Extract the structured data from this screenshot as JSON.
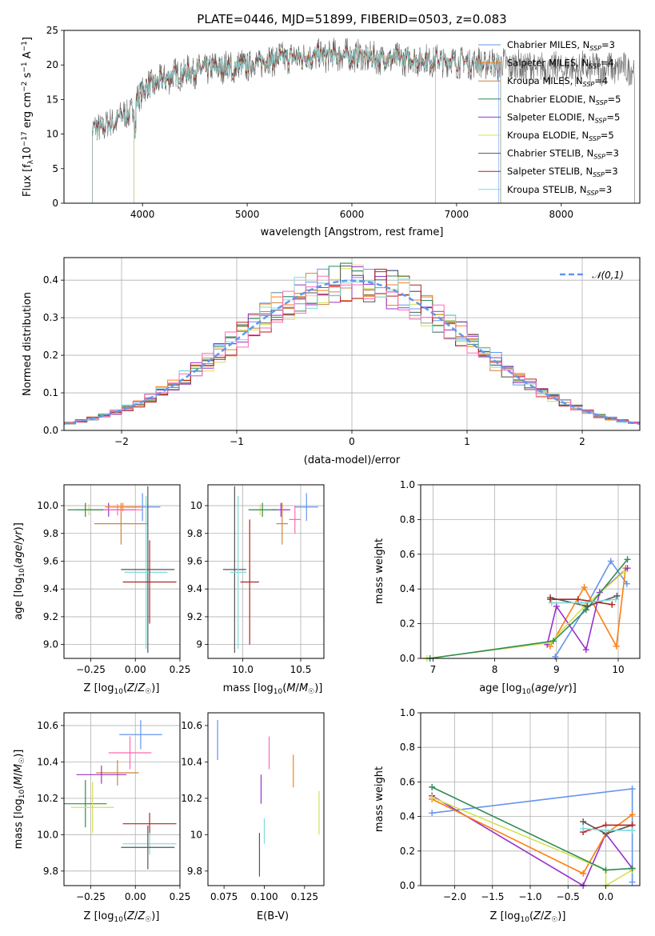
{
  "chart_data": [
    {
      "id": "spectrum",
      "type": "line",
      "title": "PLATE=0446, MJD=51899, FIBERID=0503, z=0.083",
      "xlabel": "wavelength [Angstrom, rest frame]",
      "ylabel": "Flux [f_λ10^-17 erg cm^-2 s^-1 A^-1]",
      "xlim": [
        3250,
        8750
      ],
      "ylim": [
        0,
        25
      ],
      "xticks": [
        4000,
        5000,
        6000,
        7000,
        8000
      ],
      "yticks": [
        0,
        5,
        10,
        15,
        20,
        25
      ],
      "grid": false,
      "legend_position": "top-right",
      "continuum": [
        [
          3520,
          10.5
        ],
        [
          3700,
          11.5
        ],
        [
          3900,
          13.5
        ],
        [
          4000,
          16.5
        ],
        [
          4300,
          18.5
        ],
        [
          4600,
          19.5
        ],
        [
          5000,
          20
        ],
        [
          5300,
          21
        ],
        [
          5600,
          21.2
        ],
        [
          5900,
          21.5
        ],
        [
          6200,
          21
        ],
        [
          6600,
          20.8
        ],
        [
          7000,
          20.5
        ],
        [
          7300,
          20.2
        ],
        [
          7500,
          20
        ],
        [
          7800,
          19.5
        ]
      ],
      "series": [
        {
          "name": "Chabrier MILES, N_SSP=3",
          "label_main": "Chabrier MILES, N",
          "label_sub": "SSP",
          "label_end": "=3",
          "color": "#6495ed",
          "xmin": 3520,
          "xmax": 7400
        },
        {
          "name": "Salpeter MILES, N_SSP=4",
          "label_main": "Salpeter MILES, N",
          "label_sub": "SSP",
          "label_end": "=4",
          "color": "#ff7f0e",
          "xmin": 3520,
          "xmax": 7420
        },
        {
          "name": "Kroupa MILES, N_SSP=4",
          "label_main": "Kroupa MILES, N",
          "label_sub": "SSP",
          "label_end": "=4",
          "color": "#cd853f",
          "xmin": 3520,
          "xmax": 7420
        },
        {
          "name": "Chabrier ELODIE, N_SSP=5",
          "label_main": "Chabrier ELODIE, N",
          "label_sub": "SSP",
          "label_end": "=5",
          "color": "#2e8b57",
          "xmin": 3920,
          "xmax": 6800
        },
        {
          "name": "Salpeter ELODIE, N_SSP=5",
          "label_main": "Salpeter ELODIE, N",
          "label_sub": "SSP",
          "label_end": "=5",
          "color": "#9932cc",
          "xmin": 3920,
          "xmax": 6800
        },
        {
          "name": "Kroupa ELODIE, N_SSP=5",
          "label_main": "Kroupa ELODIE, N",
          "label_sub": "SSP",
          "label_end": "=5",
          "color": "#d4e157",
          "xmin": 3920,
          "xmax": 6800
        },
        {
          "name": "Chabrier STELIB, N_SSP=3",
          "label_main": "Chabrier STELIB, N",
          "label_sub": "SSP",
          "label_end": "=3",
          "color": "#555555",
          "xmin": 3520,
          "xmax": 8700
        },
        {
          "name": "Salpeter STELIB, N_SSP=3",
          "label_main": "Salpeter STELIB, N",
          "label_sub": "SSP",
          "label_end": "=3",
          "color": "#b22222",
          "xmin": 3520,
          "xmax": 7420
        },
        {
          "name": "Kroupa STELIB, N_SSP=3",
          "label_main": "Kroupa STELIB, N",
          "label_sub": "SSP",
          "label_end": "=3",
          "color": "#7fdbdb",
          "xmin": 3520,
          "xmax": 7420
        }
      ]
    },
    {
      "id": "residuals",
      "type": "bar",
      "xlabel": "(data-model)/error",
      "ylabel": "Normed distribution",
      "xlim": [
        -2.5,
        2.5
      ],
      "ylim": [
        0,
        0.46
      ],
      "xticks": [
        -2,
        -1,
        0,
        1,
        2
      ],
      "yticks": [
        0.0,
        0.1,
        0.2,
        0.3,
        0.4
      ],
      "ytick_labels": [
        "0.0",
        "0.1",
        "0.2",
        "0.3",
        "0.4"
      ],
      "grid": true,
      "legend_position": "top-right",
      "legend_label": "𝒩(0,1)",
      "gaussian": {
        "mean": 0,
        "sigma": 1,
        "color": "#6495ed"
      },
      "bin_width": 0.1,
      "bin_start": -2.5,
      "bin_count": 50
    },
    {
      "id": "age_vs_Z",
      "type": "scatter",
      "xlabel": "Z [log10(Z/Z☉)]",
      "ylabel": "age [log10(age/yr)]",
      "xlim": [
        -0.4,
        0.25
      ],
      "ylim": [
        8.9,
        10.15
      ],
      "xticks": [
        -0.25,
        0.0,
        0.25
      ],
      "xtick_labels": [
        "−0.25",
        "0.00",
        "0.25"
      ],
      "yticks": [
        9.0,
        9.2,
        9.4,
        9.6,
        9.8,
        10.0
      ],
      "ytick_labels": [
        "9.0",
        "9.2",
        "9.4",
        "9.6",
        "9.8",
        "10.0"
      ],
      "grid": true,
      "points": [
        {
          "x": 0.04,
          "xerr": 0.1,
          "y": 9.99,
          "yerr": 0.1,
          "color": "#6495ed"
        },
        {
          "x": -0.15,
          "xerr": 0.15,
          "y": 9.97,
          "yerr": 0.05,
          "color": "#9932cc"
        },
        {
          "x": -0.07,
          "xerr": 0.1,
          "y": 9.99,
          "yerr": 0.03,
          "color": "#ff7f0e"
        },
        {
          "x": -0.1,
          "xerr": 0.14,
          "y": 9.97,
          "yerr": 0.04,
          "color": "#ff69b4"
        },
        {
          "x": -0.26,
          "xerr": 0.07,
          "y": 9.97,
          "yerr": 0.04,
          "color": "#d4e157"
        },
        {
          "x": -0.08,
          "xerr": 0.15,
          "y": 9.87,
          "yerr": 0.15,
          "color": "#cd853f"
        },
        {
          "x": -0.28,
          "xerr": 0.1,
          "y": 9.97,
          "yerr": 0.05,
          "color": "#2e8b57"
        },
        {
          "x": 0.07,
          "xerr": 0.15,
          "y": 9.54,
          "yerr": 0.6,
          "color": "#555555"
        },
        {
          "x": 0.06,
          "xerr": 0.12,
          "y": 9.52,
          "yerr": 0.55,
          "color": "#7fdbdb"
        },
        {
          "x": 0.08,
          "xerr": 0.15,
          "y": 9.45,
          "yerr": 0.3,
          "color": "#b22222"
        }
      ]
    },
    {
      "id": "age_vs_mass",
      "type": "scatter",
      "xlabel": "mass [log10(M/M☉)]",
      "xlim": [
        9.7,
        10.7
      ],
      "ylim": [
        8.9,
        10.15
      ],
      "xticks": [
        10.0,
        10.5
      ],
      "xtick_labels": [
        "10.0",
        "10.5"
      ],
      "yticks": [
        9.0,
        9.2,
        9.4,
        9.6,
        9.8,
        10.0
      ],
      "grid": true,
      "points": [
        {
          "x": 10.55,
          "xerr": 0.1,
          "y": 9.99,
          "yerr": 0.1,
          "color": "#6495ed"
        },
        {
          "x": 10.33,
          "xerr": 0.08,
          "y": 9.97,
          "yerr": 0.05,
          "color": "#9932cc"
        },
        {
          "x": 10.45,
          "xerr": 0.05,
          "y": 9.9,
          "yerr": 0.1,
          "color": "#ff69b4"
        },
        {
          "x": 10.34,
          "xerr": 0.05,
          "y": 9.87,
          "yerr": 0.15,
          "color": "#cd853f"
        },
        {
          "x": 10.15,
          "xerr": 0.1,
          "y": 9.97,
          "yerr": 0.04,
          "color": "#d4e157"
        },
        {
          "x": 10.17,
          "xerr": 0.12,
          "y": 9.97,
          "yerr": 0.05,
          "color": "#2e8b57"
        },
        {
          "x": 9.93,
          "xerr": 0.1,
          "y": 9.54,
          "yerr": 0.6,
          "color": "#555555"
        },
        {
          "x": 9.96,
          "xerr": 0.07,
          "y": 9.52,
          "yerr": 0.55,
          "color": "#7fdbdb"
        },
        {
          "x": 10.06,
          "xerr": 0.08,
          "y": 9.45,
          "yerr": 0.45,
          "color": "#b22222"
        }
      ]
    },
    {
      "id": "weight_vs_age",
      "type": "line",
      "xlabel": "age [log10(age/yr)]",
      "ylabel": "mass weight",
      "xlim": [
        6.8,
        10.35
      ],
      "ylim": [
        0,
        1.0
      ],
      "xticks": [
        7,
        8,
        9,
        10
      ],
      "yticks": [
        0.0,
        0.2,
        0.4,
        0.6,
        0.8,
        1.0
      ],
      "ytick_labels": [
        "0.0",
        "0.2",
        "0.4",
        "0.6",
        "0.8",
        "1.0"
      ],
      "grid": true,
      "series": [
        {
          "color": "#6495ed",
          "x": [
            8.98,
            9.48,
            9.88,
            10.14
          ],
          "y": [
            0.01,
            0.3,
            0.56,
            0.43
          ]
        },
        {
          "color": "#ff7f0e",
          "x": [
            8.9,
            9.45,
            9.97,
            10.12
          ],
          "y": [
            0.07,
            0.41,
            0.07,
            0.52
          ]
        },
        {
          "color": "#9932cc",
          "x": [
            8.85,
            9.0,
            9.48,
            9.7,
            10.15
          ],
          "y": [
            0.08,
            0.3,
            0.05,
            0.38,
            0.52
          ]
        },
        {
          "color": "#d4e157",
          "x": [
            6.9,
            8.9,
            9.45,
            10.1
          ],
          "y": [
            0.0,
            0.09,
            0.3,
            0.5
          ]
        },
        {
          "color": "#2e8b57",
          "x": [
            6.95,
            8.95,
            9.48,
            10.15
          ],
          "y": [
            0.0,
            0.1,
            0.28,
            0.57
          ]
        },
        {
          "color": "#555555",
          "x": [
            8.9,
            9.5,
            9.98
          ],
          "y": [
            0.35,
            0.3,
            0.36
          ]
        },
        {
          "color": "#b22222",
          "x": [
            8.9,
            9.35,
            9.9
          ],
          "y": [
            0.34,
            0.34,
            0.31
          ]
        },
        {
          "color": "#7fdbdb",
          "x": [
            8.92,
            9.4,
            9.96
          ],
          "y": [
            0.32,
            0.32,
            0.34
          ]
        }
      ]
    },
    {
      "id": "mass_vs_Z",
      "type": "scatter",
      "xlabel": "Z [log10(Z/Z☉)]",
      "ylabel": "mass [log10(M/M☉)]",
      "xlim": [
        -0.4,
        0.25
      ],
      "ylim": [
        9.72,
        10.67
      ],
      "xticks": [
        -0.25,
        0.0,
        0.25
      ],
      "xtick_labels": [
        "−0.25",
        "0.00",
        "0.25"
      ],
      "yticks": [
        9.8,
        10.0,
        10.2,
        10.4,
        10.6
      ],
      "ytick_labels": [
        "9.8",
        "10.0",
        "10.2",
        "10.4",
        "10.6"
      ],
      "grid": true,
      "points": [
        {
          "x": 0.03,
          "xerr": 0.12,
          "y": 10.55,
          "yerr": 0.08,
          "color": "#6495ed"
        },
        {
          "x": -0.03,
          "xerr": 0.12,
          "y": 10.45,
          "yerr": 0.09,
          "color": "#ff69b4"
        },
        {
          "x": -0.1,
          "xerr": 0.12,
          "y": 10.34,
          "yerr": 0.07,
          "color": "#cd853f"
        },
        {
          "x": -0.19,
          "xerr": 0.14,
          "y": 10.33,
          "yerr": 0.05,
          "color": "#9932cc"
        },
        {
          "x": -0.28,
          "xerr": 0.12,
          "y": 10.17,
          "yerr": 0.13,
          "color": "#2e8b57"
        },
        {
          "x": -0.24,
          "xerr": 0.12,
          "y": 10.15,
          "yerr": 0.14,
          "color": "#d4e157"
        },
        {
          "x": 0.08,
          "xerr": 0.15,
          "y": 10.06,
          "yerr": 0.06,
          "color": "#b22222"
        },
        {
          "x": 0.08,
          "xerr": 0.15,
          "y": 9.95,
          "yerr": 0.06,
          "color": "#7fdbdb"
        },
        {
          "x": 0.07,
          "xerr": 0.15,
          "y": 9.93,
          "yerr": 0.12,
          "color": "#555555"
        }
      ]
    },
    {
      "id": "mass_vs_EBV",
      "type": "scatter",
      "xlabel": "E(B-V)",
      "xlim": [
        0.065,
        0.137
      ],
      "ylim": [
        9.72,
        10.67
      ],
      "xticks": [
        0.075,
        0.1,
        0.125
      ],
      "xtick_labels": [
        "0.075",
        "0.100",
        "0.125"
      ],
      "yticks": [
        9.8,
        10.0,
        10.2,
        10.4,
        10.6
      ],
      "grid": false,
      "points": [
        {
          "x": 0.071,
          "y": 10.52,
          "yerr": 0.11,
          "color": "#6495ed"
        },
        {
          "x": 0.103,
          "y": 10.45,
          "yerr": 0.09,
          "color": "#ff69b4"
        },
        {
          "x": 0.118,
          "y": 10.35,
          "yerr": 0.09,
          "color": "#ff7f0e"
        },
        {
          "x": 0.098,
          "y": 10.25,
          "yerr": 0.08,
          "color": "#9932cc"
        },
        {
          "x": 0.134,
          "y": 10.12,
          "yerr": 0.12,
          "color": "#d4e157"
        },
        {
          "x": 0.1,
          "y": 10.02,
          "yerr": 0.07,
          "color": "#7fdbdb"
        },
        {
          "x": 0.097,
          "y": 9.89,
          "yerr": 0.12,
          "color": "#555555"
        }
      ]
    },
    {
      "id": "weight_vs_Z",
      "type": "line",
      "xlabel": "Z [log10(Z/Z☉)]",
      "ylabel": "mass weight",
      "xlim": [
        -2.45,
        0.45
      ],
      "ylim": [
        0,
        1.0
      ],
      "xticks": [
        -2.0,
        -1.5,
        -1.0,
        -0.5,
        0.0
      ],
      "xtick_labels": [
        "−2.0",
        "−1.5",
        "−1.0",
        "−0.5",
        "0.0"
      ],
      "yticks": [
        0.0,
        0.2,
        0.4,
        0.6,
        0.8,
        1.0
      ],
      "ytick_labels": [
        "0.0",
        "0.2",
        "0.4",
        "0.6",
        "0.8",
        "1.0"
      ],
      "grid": true,
      "series": [
        {
          "color": "#6495ed",
          "x": [
            -2.3,
            0.35,
            0.35
          ],
          "y": [
            0.42,
            0.56,
            0.02
          ]
        },
        {
          "color": "#9932cc",
          "x": [
            -2.3,
            -0.3,
            0.0,
            0.35
          ],
          "y": [
            0.52,
            0.0,
            0.3,
            0.1
          ]
        },
        {
          "color": "#ff7f0e",
          "x": [
            -2.3,
            -0.3,
            0.0,
            0.35
          ],
          "y": [
            0.5,
            0.07,
            0.3,
            0.41
          ]
        },
        {
          "color": "#d4e157",
          "x": [
            -2.3,
            0.0,
            0.0,
            0.35
          ],
          "y": [
            0.51,
            0.09,
            0.0,
            0.09
          ]
        },
        {
          "color": "#2e8b57",
          "x": [
            -2.3,
            0.0,
            0.35
          ],
          "y": [
            0.57,
            0.09,
            0.1
          ]
        },
        {
          "color": "#555555",
          "x": [
            -0.3,
            0.0,
            0.35
          ],
          "y": [
            0.37,
            0.3,
            0.35
          ]
        },
        {
          "color": "#b22222",
          "x": [
            -0.3,
            0.0,
            0.35
          ],
          "y": [
            0.31,
            0.35,
            0.35
          ]
        },
        {
          "color": "#7fdbdb",
          "x": [
            -0.3,
            0.0,
            0.35
          ],
          "y": [
            0.33,
            0.32,
            0.32
          ]
        }
      ]
    }
  ]
}
